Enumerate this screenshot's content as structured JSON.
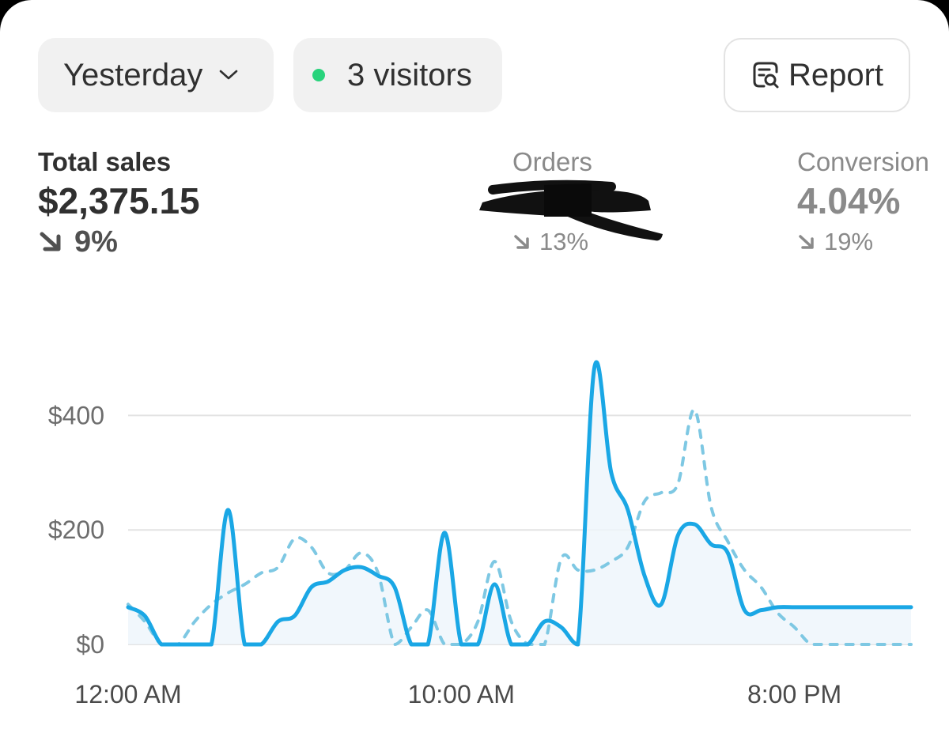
{
  "toolbar": {
    "period_label": "Yesterday",
    "visitors_label": "3 visitors",
    "report_label": "Report"
  },
  "metrics": {
    "total_sales": {
      "label": "Total sales",
      "value": "$2,375.15",
      "delta": "9%",
      "direction": "down"
    },
    "orders": {
      "label": "Orders",
      "value": "",
      "delta": "13%",
      "direction": "down"
    },
    "conversion": {
      "label": "Conversion",
      "value": "4.04%",
      "delta": "19%",
      "direction": "down"
    }
  },
  "colors": {
    "current_line": "#1aa7e5",
    "comparison_line": "#7ec8e3",
    "live_dot": "#29d37c",
    "grid": "#e3e3e3"
  },
  "icons": {
    "period": "chevron-down-icon",
    "report": "report-search-icon",
    "delta": "arrow-down-right-icon"
  },
  "chart_data": {
    "type": "line",
    "grid": true,
    "ylim": [
      0,
      500
    ],
    "y_ticks": [
      "$0",
      "$200",
      "$400"
    ],
    "y_tick_values": [
      0,
      200,
      400
    ],
    "x_ticks": [
      "12:00 AM",
      "10:00 AM",
      "8:00 PM"
    ],
    "x_tick_values": [
      0,
      10,
      20
    ],
    "x_range": [
      0,
      23.5
    ],
    "series": [
      {
        "style": "solid",
        "x": [
          0,
          0.5,
          1,
          1.5,
          2,
          2.5,
          3,
          3.5,
          4,
          4.5,
          5,
          5.5,
          6,
          6.5,
          7,
          7.5,
          8,
          8.5,
          9,
          9.5,
          10,
          10.5,
          11,
          11.5,
          12,
          12.5,
          13,
          13.5,
          14,
          14.5,
          15,
          15.5,
          16,
          16.5,
          17,
          17.5,
          18,
          18.5,
          19,
          19.5,
          20,
          20.5,
          21,
          21.5,
          22,
          22.5,
          23,
          23.5
        ],
        "values": [
          65,
          50,
          0,
          0,
          0,
          0,
          235,
          0,
          0,
          40,
          50,
          100,
          110,
          130,
          135,
          120,
          100,
          0,
          0,
          195,
          0,
          0,
          105,
          0,
          0,
          40,
          30,
          0,
          485,
          300,
          235,
          120,
          70,
          190,
          210,
          175,
          160,
          60,
          60,
          65,
          65,
          65,
          65,
          65,
          65,
          65,
          65,
          65
        ]
      },
      {
        "style": "dashed",
        "x": [
          0,
          0.5,
          1,
          1.5,
          2,
          2.5,
          3,
          3.5,
          4,
          4.5,
          5,
          5.5,
          6,
          6.5,
          7,
          7.5,
          8,
          8.5,
          9,
          9.5,
          10,
          10.5,
          11,
          11.5,
          12,
          12.5,
          13,
          13.5,
          14,
          14.5,
          15,
          15.5,
          16,
          16.5,
          17,
          17.5,
          18,
          18.5,
          19,
          19.5,
          20,
          20.5,
          21,
          21.5,
          22,
          22.5,
          23,
          23.5
        ],
        "values": [
          70,
          40,
          0,
          0,
          40,
          70,
          90,
          105,
          125,
          135,
          185,
          170,
          125,
          130,
          160,
          125,
          0,
          30,
          60,
          0,
          0,
          40,
          145,
          40,
          0,
          0,
          150,
          130,
          130,
          145,
          170,
          250,
          265,
          280,
          410,
          240,
          180,
          130,
          100,
          55,
          30,
          0,
          0,
          0,
          0,
          0,
          0,
          0
        ]
      }
    ]
  }
}
